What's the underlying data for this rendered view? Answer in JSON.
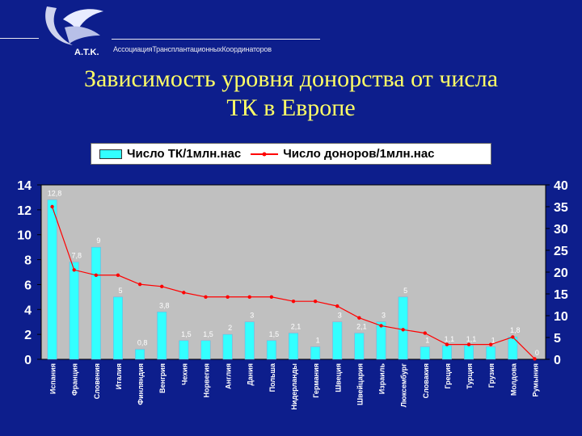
{
  "header": {
    "logo_text": "A.T.K.",
    "association": "АссоциацияТрансплантационныхКоординаторов",
    "title_line1": "Зависимость уровня донорства от числа",
    "title_line2": "ТК в Европе"
  },
  "colors": {
    "background": "#0d1e8c",
    "plot": "#c0c0c0",
    "bar": "#33ffff",
    "line": "#ff0000",
    "title": "#ffff66",
    "text": "#ffffff"
  },
  "chart_data": {
    "type": "bar",
    "categories": [
      "Испания",
      "Франция",
      "Словения",
      "Италия",
      "Финляндия",
      "Венгрия",
      "Чехия",
      "Норвегия",
      "Англия",
      "Дания",
      "Польша",
      "Нидерланды",
      "Германия",
      "Швеция",
      "Швейцария",
      "Израиль",
      "Люксембург",
      "Словакия",
      "Греция",
      "Турция",
      "Грузия",
      "Молдова",
      "Румыния"
    ],
    "series": [
      {
        "name": "Число ТК/1млн.нас",
        "type": "bar",
        "axis": "left",
        "values": [
          12.8,
          7.8,
          9,
          5,
          0.8,
          3.8,
          1.5,
          1.5,
          2,
          3,
          1.5,
          2.1,
          1,
          3,
          2.1,
          3,
          5,
          1,
          1.1,
          1.1,
          1,
          1.8,
          0
        ],
        "labels": [
          "12,8",
          "7,8",
          "9",
          "5",
          "0,8",
          "3,8",
          "1,5",
          "1,5",
          "2",
          "3",
          "1,5",
          "2,1",
          "1",
          "3",
          "2,1",
          "3",
          "5",
          "1",
          "1,1",
          "1,1",
          "1",
          "1,8",
          "0"
        ]
      },
      {
        "name": "Число доноров/1млн.нас",
        "type": "line",
        "axis": "right",
        "values": [
          35,
          20.5,
          19.3,
          19.3,
          17.2,
          16.7,
          15.3,
          14.3,
          14.3,
          14.3,
          14.3,
          13.3,
          13.3,
          12.2,
          9.5,
          7.7,
          6.8,
          6,
          3.4,
          3.4,
          3.4,
          5.1,
          0.1
        ]
      }
    ],
    "ylim_left": [
      0,
      14
    ],
    "yticks_left": [
      0,
      2,
      4,
      6,
      8,
      10,
      12,
      14
    ],
    "ylim_right": [
      0,
      40
    ],
    "yticks_right": [
      0,
      5,
      10,
      15,
      20,
      25,
      30,
      35,
      40
    ],
    "legend": "top",
    "grid": false
  }
}
